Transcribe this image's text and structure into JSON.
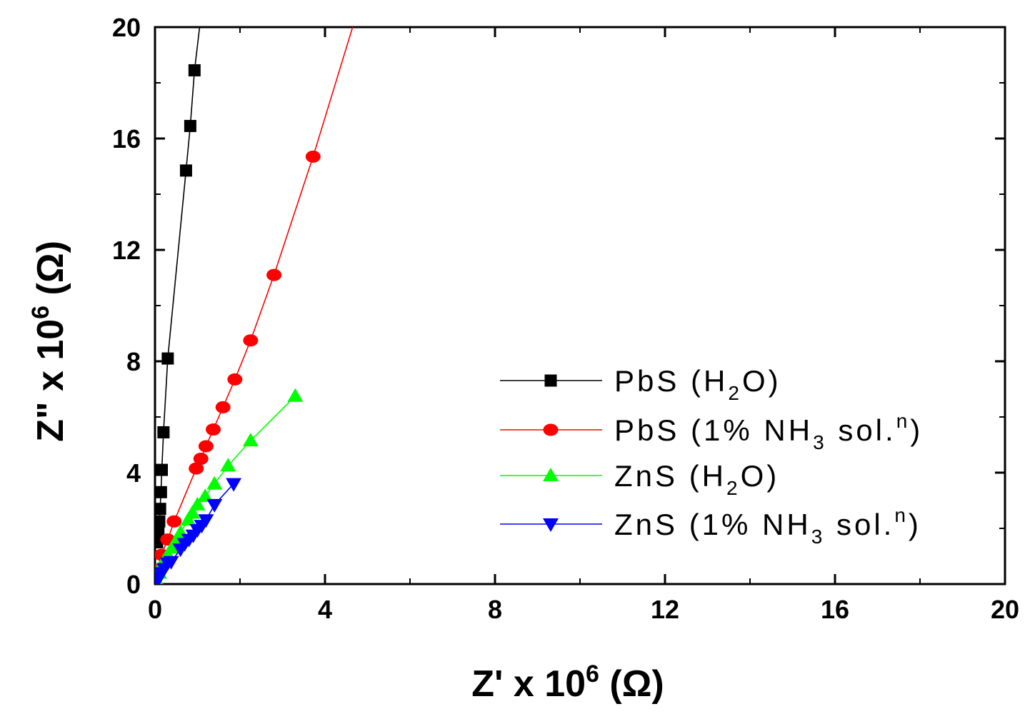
{
  "chart_data": {
    "type": "scatter",
    "title": "",
    "xlabel": {
      "base": "Z' x 10",
      "exp": "6",
      "unit": " (Ω)"
    },
    "ylabel": {
      "base": "Z\" x 10",
      "exp": "6",
      "unit": " (Ω)"
    },
    "xlim": [
      0,
      20
    ],
    "ylim": [
      0,
      20
    ],
    "xticks": [
      "0",
      "4",
      "8",
      "12",
      "16",
      "20"
    ],
    "yticks": [
      "0",
      "4",
      "8",
      "12",
      "16",
      "20"
    ],
    "grid": false,
    "legend_position": "center-right",
    "series": [
      {
        "name": "PbS (H2O)",
        "legend": {
          "pre": "PbS (H",
          "sub": "2",
          "mid": "O)",
          "sup": "",
          "post": ""
        },
        "color": "#000000",
        "marker": "square",
        "line_end": [
          1.05,
          20.0
        ],
        "x": [
          0.05,
          0.08,
          0.1,
          0.12,
          0.14,
          0.16,
          0.2,
          0.3,
          0.73,
          0.83,
          0.93
        ],
        "y": [
          1.5,
          1.85,
          2.25,
          2.7,
          3.3,
          4.1,
          5.45,
          8.1,
          14.85,
          16.45,
          18.45
        ]
      },
      {
        "name": "PbS (1% NH3 sol.n)",
        "legend": {
          "pre": "PbS (1% NH",
          "sub": "3",
          "mid": " sol.",
          "sup": "n",
          "post": ")"
        },
        "color": "#ff0000",
        "marker": "circle",
        "line_end": [
          4.65,
          20.0
        ],
        "x": [
          0.05,
          0.15,
          0.3,
          0.45,
          0.97,
          1.08,
          1.2,
          1.37,
          1.6,
          1.88,
          2.25,
          2.8,
          3.72
        ],
        "y": [
          0.5,
          1.05,
          1.6,
          2.25,
          4.15,
          4.5,
          4.95,
          5.55,
          6.35,
          7.35,
          8.75,
          11.1,
          15.35
        ]
      },
      {
        "name": "ZnS (H2O)",
        "legend": {
          "pre": "ZnS (H",
          "sub": "2",
          "mid": "O)",
          "sup": "",
          "post": ""
        },
        "color": "#00ff00",
        "marker": "triangle-up",
        "line_end": null,
        "x": [
          0.05,
          0.1,
          0.2,
          0.3,
          0.4,
          0.5,
          0.6,
          0.78,
          0.88,
          1.0,
          1.18,
          1.4,
          1.72,
          2.25,
          3.3
        ],
        "y": [
          0.1,
          0.4,
          0.8,
          1.05,
          1.3,
          1.55,
          1.85,
          2.3,
          2.55,
          2.85,
          3.15,
          3.6,
          4.25,
          5.15,
          6.75
        ]
      },
      {
        "name": "ZnS (1% NH3 sol.n)",
        "legend": {
          "pre": "ZnS (1% NH",
          "sub": "3",
          "mid": " sol.",
          "sup": "n",
          "post": ")"
        },
        "color": "#0000ff",
        "marker": "triangle-down",
        "line_end": null,
        "x": [
          0.05,
          0.1,
          0.15,
          0.22,
          0.3,
          0.38,
          0.6,
          0.7,
          0.8,
          0.9,
          1.0,
          1.1,
          1.2,
          1.4,
          1.85
        ],
        "y": [
          0.1,
          0.25,
          0.4,
          0.55,
          0.75,
          0.8,
          1.25,
          1.45,
          1.6,
          1.75,
          1.95,
          2.1,
          2.3,
          2.85,
          3.6
        ]
      }
    ]
  }
}
